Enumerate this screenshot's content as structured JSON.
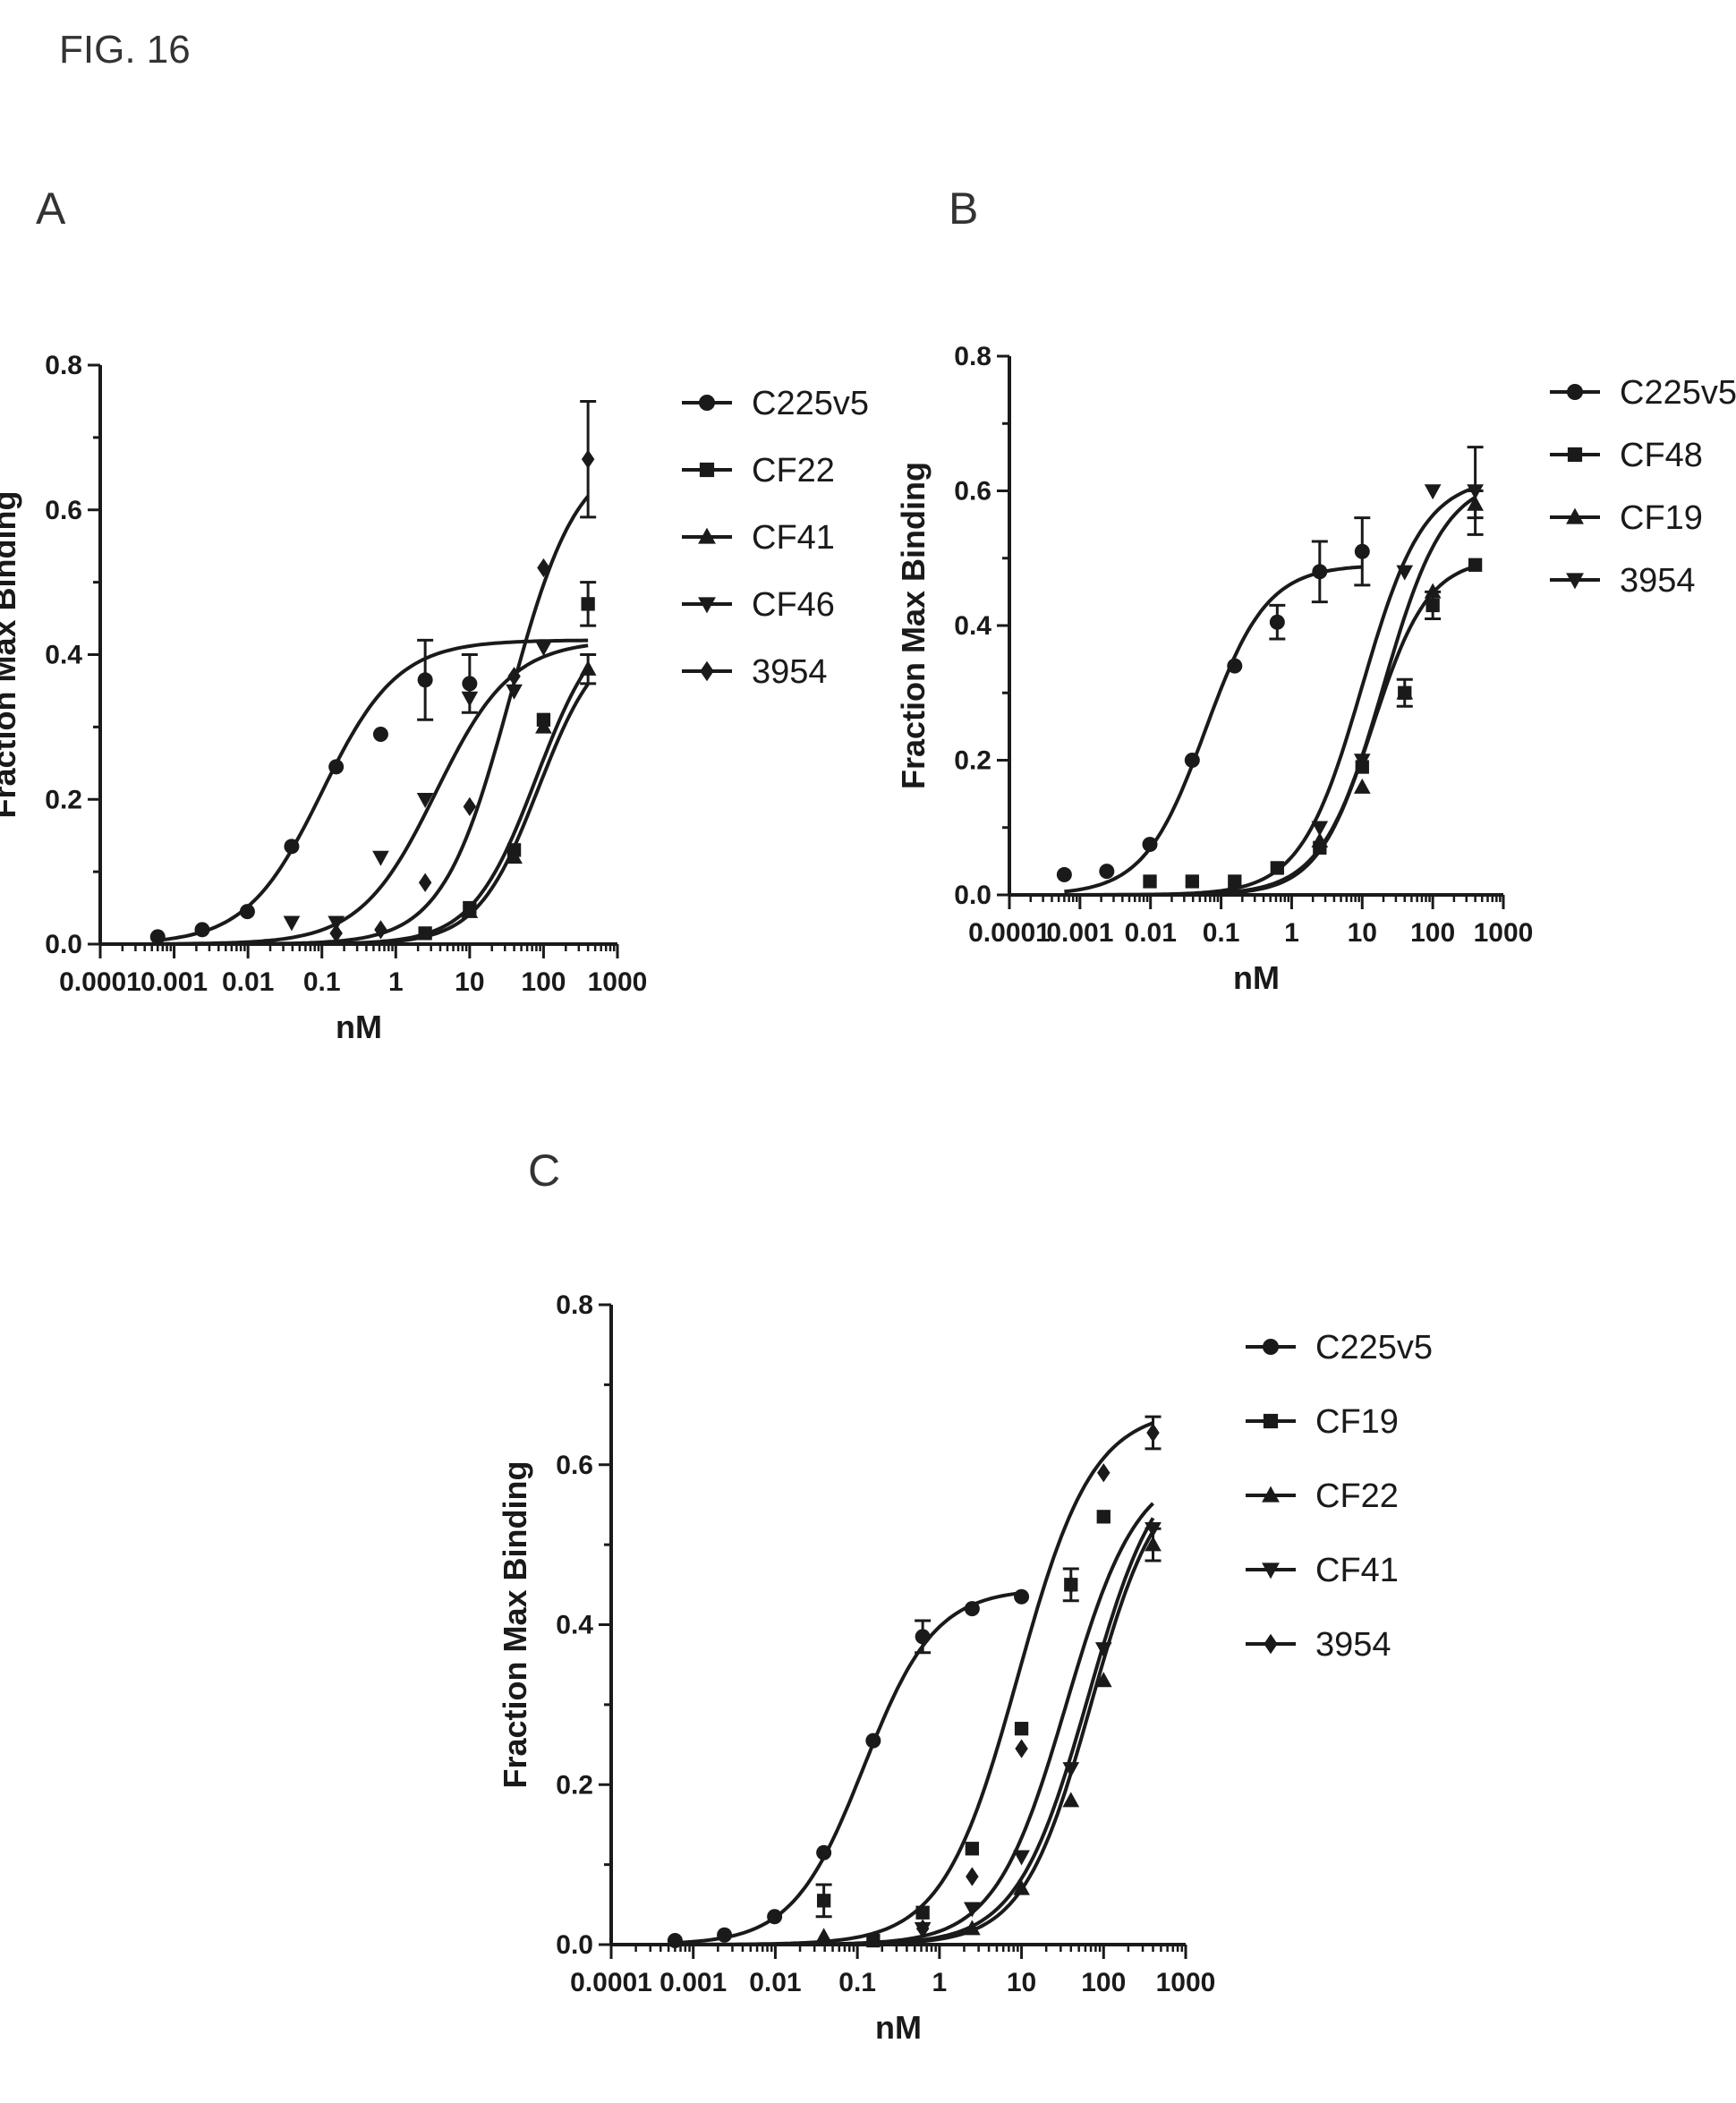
{
  "figure_label": "FIG. 16",
  "chart_data": [
    {
      "panel": "A",
      "type": "line",
      "xscale": "log",
      "xlabel": "nM",
      "ylabel": "Fraction Max Binding",
      "xlim": [
        0.0001,
        1000
      ],
      "ylim": [
        0,
        0.8
      ],
      "xticks": [
        "0.0001",
        "0.001",
        "0.01",
        "0.1",
        "1",
        "10",
        "100",
        "1000"
      ],
      "yticks": [
        "0.0",
        "0.2",
        "0.4",
        "0.6",
        "0.8"
      ],
      "legend_position": "right",
      "x": [
        0.0006,
        0.0024,
        0.0098,
        0.039,
        0.156,
        0.625,
        2.5,
        10,
        40,
        100,
        400
      ],
      "series": [
        {
          "name": "C225v5",
          "marker": "circle",
          "values": [
            0.01,
            0.02,
            0.045,
            0.135,
            0.245,
            0.29,
            0.365,
            0.36,
            null,
            null,
            null
          ],
          "error": [
            0,
            0,
            0,
            0,
            0,
            0,
            0.055,
            0.04,
            0,
            0,
            0
          ],
          "fit": {
            "bottom": 0,
            "top": 0.42,
            "ec50": 0.1,
            "hill": 0.85,
            "xmin": 0.0006,
            "xmax": 400
          }
        },
        {
          "name": "CF22",
          "marker": "square",
          "values": [
            null,
            null,
            null,
            null,
            null,
            null,
            0.015,
            0.05,
            0.13,
            0.31,
            0.47
          ],
          "error": [
            0,
            0,
            0,
            0,
            0,
            0,
            0,
            0,
            0,
            0,
            0.03
          ],
          "fit": {
            "bottom": 0,
            "top": 0.46,
            "ec50": 80,
            "hill": 1.0,
            "xmin": 0.0006,
            "xmax": 400
          }
        },
        {
          "name": "CF41",
          "marker": "triangle-up",
          "values": [
            null,
            null,
            null,
            null,
            null,
            null,
            null,
            0.045,
            0.12,
            0.3,
            0.38
          ],
          "error": [
            0,
            0,
            0,
            0,
            0,
            0,
            0,
            0,
            0,
            0,
            0.02
          ],
          "fit": {
            "bottom": 0,
            "top": 0.43,
            "ec50": 85,
            "hill": 1.05,
            "xmin": 0.0006,
            "xmax": 400
          }
        },
        {
          "name": "CF46",
          "marker": "triangle-down",
          "values": [
            null,
            null,
            null,
            0.03,
            0.03,
            0.12,
            0.2,
            0.34,
            0.35,
            0.41,
            null
          ],
          "error": [
            0,
            0,
            0,
            0,
            0,
            0,
            0,
            0,
            0,
            0,
            0
          ],
          "fit": {
            "bottom": 0,
            "top": 0.42,
            "ec50": 3.5,
            "hill": 0.85,
            "xmin": 0.0006,
            "xmax": 400
          }
        },
        {
          "name": "3954",
          "marker": "diamond",
          "values": [
            null,
            null,
            null,
            null,
            0.015,
            0.02,
            0.085,
            0.19,
            0.37,
            0.52,
            0.67
          ],
          "error": [
            0,
            0,
            0,
            0,
            0,
            0,
            0,
            0,
            0,
            0,
            0.08
          ],
          "fit": {
            "bottom": 0,
            "top": 0.68,
            "ec50": 35,
            "hill": 0.95,
            "xmin": 0.0006,
            "xmax": 400
          }
        }
      ]
    },
    {
      "panel": "B",
      "type": "line",
      "xscale": "log",
      "xlabel": "nM",
      "ylabel": "Fraction Max Binding",
      "xlim": [
        0.0001,
        1000
      ],
      "ylim": [
        0,
        0.8
      ],
      "xticks": [
        "0.0001",
        "0.001",
        "0.01",
        "0.1",
        "1",
        "10",
        "100",
        "1000"
      ],
      "yticks": [
        "0.0",
        "0.2",
        "0.4",
        "0.6",
        "0.8"
      ],
      "legend_position": "right",
      "x": [
        0.0006,
        0.0024,
        0.0098,
        0.039,
        0.156,
        0.625,
        2.5,
        10,
        40,
        100,
        400
      ],
      "series": [
        {
          "name": "C225v5",
          "marker": "circle",
          "values": [
            0.03,
            0.035,
            0.075,
            0.2,
            0.34,
            0.405,
            0.48,
            0.51,
            null,
            null,
            null
          ],
          "error": [
            0,
            0,
            0,
            0,
            0,
            0.025,
            0.045,
            0.05,
            0,
            0,
            0
          ],
          "fit": {
            "bottom": 0,
            "top": 0.49,
            "ec50": 0.06,
            "hill": 1.0,
            "xmin": 0.0006,
            "xmax": 10
          }
        },
        {
          "name": "CF48",
          "marker": "square",
          "values": [
            null,
            null,
            0.02,
            0.02,
            0.02,
            0.04,
            0.07,
            0.19,
            0.3,
            0.43,
            0.49
          ],
          "error": [
            0,
            0,
            0,
            0,
            0,
            0,
            0,
            0,
            0.02,
            0.02,
            0
          ],
          "fit": {
            "bottom": 0,
            "top": 0.5,
            "ec50": 14,
            "hill": 1.1,
            "xmin": 0.0006,
            "xmax": 400
          }
        },
        {
          "name": "CF19",
          "marker": "triangle-up",
          "values": [
            null,
            null,
            null,
            null,
            null,
            null,
            0.08,
            0.16,
            0.3,
            0.45,
            0.58
          ],
          "error": [
            0,
            0,
            0,
            0,
            0,
            0,
            0,
            0,
            0,
            0,
            0.02
          ],
          "fit": {
            "bottom": 0,
            "top": 0.62,
            "ec50": 20,
            "hill": 1.0,
            "xmin": 0.0006,
            "xmax": 400
          }
        },
        {
          "name": "3954",
          "marker": "triangle-down",
          "values": [
            null,
            null,
            null,
            null,
            null,
            null,
            0.1,
            0.2,
            0.48,
            0.6,
            0.6
          ],
          "error": [
            0,
            0,
            0,
            0,
            0,
            0,
            0,
            0,
            0,
            0,
            0.065
          ],
          "fit": {
            "bottom": 0,
            "top": 0.62,
            "ec50": 10,
            "hill": 1.0,
            "xmin": 0.0006,
            "xmax": 400
          }
        }
      ]
    },
    {
      "panel": "C",
      "type": "line",
      "xscale": "log",
      "xlabel": "nM",
      "ylabel": "Fraction Max Binding",
      "xlim": [
        0.0001,
        1000
      ],
      "ylim": [
        0,
        0.8
      ],
      "xticks": [
        "0.0001",
        "0.001",
        "0.01",
        "0.1",
        "1",
        "10",
        "100",
        "1000"
      ],
      "yticks": [
        "0.0",
        "0.2",
        "0.4",
        "0.6",
        "0.8"
      ],
      "legend_position": "right",
      "x": [
        0.0006,
        0.0024,
        0.0098,
        0.039,
        0.156,
        0.625,
        2.5,
        10,
        40,
        100,
        400
      ],
      "series": [
        {
          "name": "C225v5",
          "marker": "circle",
          "values": [
            0.005,
            0.012,
            0.035,
            0.115,
            0.255,
            0.385,
            0.42,
            0.435,
            null,
            null,
            null
          ],
          "error": [
            0,
            0,
            0,
            0,
            0,
            0.02,
            0,
            0,
            0,
            0,
            0
          ],
          "fit": {
            "bottom": 0,
            "top": 0.445,
            "ec50": 0.12,
            "hill": 1.0,
            "xmin": 0.0006,
            "xmax": 10
          }
        },
        {
          "name": "CF19",
          "marker": "square",
          "values": [
            null,
            null,
            null,
            0.055,
            0.005,
            0.04,
            0.12,
            0.27,
            0.45,
            0.535,
            null
          ],
          "error": [
            0,
            0,
            0,
            0.02,
            0,
            0,
            0,
            0,
            0,
            0,
            0
          ],
          "fit": {
            "bottom": 0,
            "top": 0.6,
            "ec50": 35,
            "hill": 1.0,
            "xmin": 0.0006,
            "xmax": 400
          }
        },
        {
          "name": "CF22",
          "marker": "triangle-up",
          "values": [
            null,
            null,
            null,
            0.01,
            null,
            null,
            0.02,
            0.07,
            0.18,
            0.33,
            0.5
          ],
          "error": [
            0,
            0,
            0,
            0,
            0,
            0,
            0,
            0,
            0,
            0,
            0.02
          ],
          "fit": {
            "bottom": 0,
            "top": 0.6,
            "ec50": 70,
            "hill": 1.05,
            "xmin": 0.0006,
            "xmax": 400
          }
        },
        {
          "name": "CF41",
          "marker": "triangle-down",
          "values": [
            null,
            null,
            null,
            null,
            null,
            0.02,
            0.045,
            0.11,
            0.22,
            0.37,
            0.52
          ],
          "error": [
            0,
            0,
            0,
            0,
            0,
            0,
            0,
            0,
            0,
            0,
            0
          ],
          "fit": {
            "bottom": 0,
            "top": 0.62,
            "ec50": 65,
            "hill": 1.0,
            "xmin": 0.0006,
            "xmax": 400
          }
        },
        {
          "name": "3954",
          "marker": "diamond",
          "values": [
            null,
            null,
            null,
            null,
            null,
            0.02,
            0.085,
            0.245,
            0.45,
            0.59,
            0.64
          ],
          "error": [
            0,
            0,
            0,
            0,
            0,
            0,
            0,
            0,
            0.02,
            0,
            0.02
          ],
          "fit": {
            "bottom": 0,
            "top": 0.67,
            "ec50": 9,
            "hill": 0.95,
            "xmin": 0.0006,
            "xmax": 400
          }
        }
      ]
    }
  ]
}
